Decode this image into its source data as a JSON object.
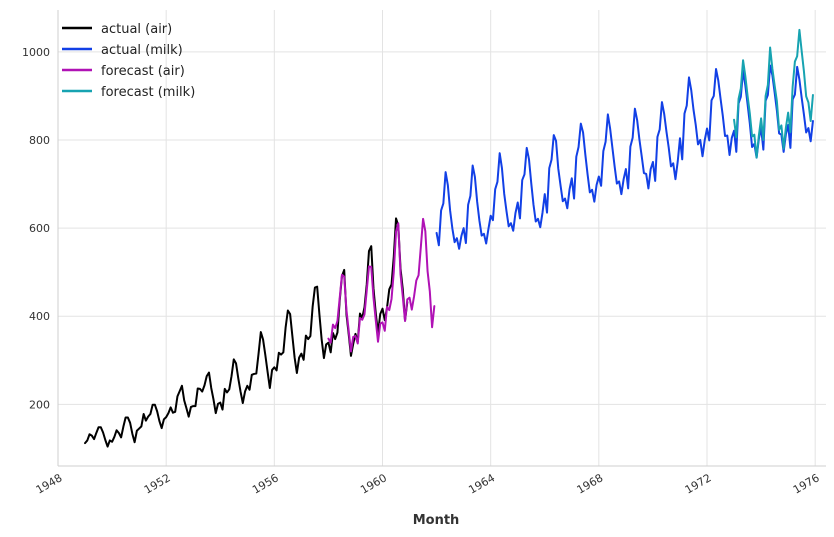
{
  "chart_data": {
    "type": "line",
    "title": "",
    "xlabel": "Month",
    "ylabel": "",
    "xlim": [
      1948,
      1976.4
    ],
    "ylim": [
      60,
      1095
    ],
    "grid": true,
    "legend_position": "top-left",
    "x_ticks": [
      "1948",
      "1952",
      "1956",
      "1960",
      "1964",
      "1968",
      "1972",
      "1976"
    ],
    "y_ticks": [
      "200",
      "400",
      "600",
      "800",
      "1000"
    ],
    "series": [
      {
        "name": "actual (air)",
        "color": "#000000",
        "start": 1949.0,
        "step": 0.083333,
        "values": [
          112,
          118,
          132,
          129,
          121,
          135,
          148,
          148,
          136,
          119,
          104,
          118,
          115,
          126,
          141,
          135,
          125,
          149,
          170,
          170,
          158,
          133,
          114,
          140,
          145,
          150,
          178,
          163,
          172,
          178,
          199,
          199,
          184,
          162,
          146,
          166,
          171,
          180,
          193,
          181,
          183,
          218,
          230,
          242,
          209,
          191,
          172,
          194,
          196,
          196,
          236,
          235,
          229,
          243,
          264,
          272,
          237,
          211,
          180,
          201,
          204,
          188,
          235,
          227,
          234,
          264,
          302,
          293,
          259,
          229,
          203,
          229,
          242,
          233,
          267,
          269,
          270,
          315,
          364,
          347,
          312,
          274,
          237,
          278,
          284,
          277,
          317,
          313,
          318,
          374,
          413,
          405,
          355,
          306,
          271,
          306,
          315,
          301,
          356,
          348,
          355,
          422,
          465,
          467,
          404,
          347,
          305,
          336,
          340,
          318,
          362,
          348,
          363,
          435,
          491,
          505,
          404,
          359,
          310,
          337,
          360,
          342,
          406,
          396,
          420,
          472,
          548,
          559,
          463,
          407,
          362,
          405,
          417,
          391,
          419,
          461,
          472,
          535,
          622,
          606,
          508,
          461,
          390,
          432
        ]
      },
      {
        "name": "actual (milk)",
        "color": "#1240e6",
        "start": 1962.0,
        "step": 0.083333,
        "values": [
          589,
          561,
          640,
          656,
          727,
          697,
          640,
          599,
          568,
          577,
          553,
          582,
          600,
          566,
          653,
          673,
          742,
          716,
          660,
          617,
          583,
          587,
          565,
          598,
          628,
          618,
          688,
          705,
          770,
          736,
          678,
          639,
          604,
          611,
          594,
          634,
          658,
          622,
          709,
          722,
          782,
          756,
          702,
          653,
          615,
          621,
          602,
          635,
          677,
          635,
          736,
          755,
          811,
          798,
          735,
          697,
          661,
          667,
          645,
          688,
          713,
          667,
          762,
          784,
          837,
          817,
          767,
          722,
          681,
          687,
          660,
          698,
          717,
          696,
          775,
          796,
          858,
          826,
          783,
          740,
          701,
          706,
          677,
          711,
          734,
          690,
          785,
          805,
          871,
          845,
          801,
          764,
          725,
          723,
          690,
          734,
          750,
          707,
          807,
          824,
          886,
          859,
          819,
          783,
          740,
          747,
          711,
          751,
          804,
          756,
          860,
          878,
          942,
          913,
          869,
          834,
          790,
          800,
          763,
          800,
          826,
          799,
          890,
          900,
          961,
          935,
          894,
          855,
          809,
          810,
          766,
          805,
          821,
          773,
          883,
          898,
          957,
          924,
          881,
          837,
          784,
          791,
          760,
          802,
          828,
          778,
          889,
          902,
          969,
          947,
          908,
          867,
          815,
          812,
          773,
          813,
          834,
          782,
          892,
          903,
          966,
          937,
          896,
          858,
          817,
          827,
          797,
          843
        ]
      },
      {
        "name": "forecast (air)",
        "color": "#b012b5",
        "start": 1958.0,
        "step": 0.083333,
        "values": [
          349,
          340,
          381,
          373,
          389,
          441,
          494,
          490,
          414,
          367,
          320,
          353,
          355,
          338,
          396,
          392,
          404,
          458,
          513,
          512,
          442,
          391,
          342,
          383,
          386,
          367,
          421,
          414,
          439,
          500,
          592,
          611,
          495,
          444,
          389,
          438,
          442,
          415,
          445,
          481,
          493,
          557,
          621,
          593,
          502,
          456,
          375,
          423
        ]
      },
      {
        "name": "forecast (milk)",
        "color": "#17a3b1",
        "start": 1973.0,
        "step": 0.083333,
        "values": [
          846,
          806,
          893,
          917,
          981,
          945,
          900,
          860,
          808,
          812,
          760,
          810,
          849,
          800,
          900,
          925,
          1010,
          962,
          924,
          888,
          823,
          833,
          780,
          828,
          862,
          818,
          921,
          978,
          990,
          1050,
          1002,
          956,
          899,
          885,
          843,
          902
        ]
      }
    ]
  }
}
